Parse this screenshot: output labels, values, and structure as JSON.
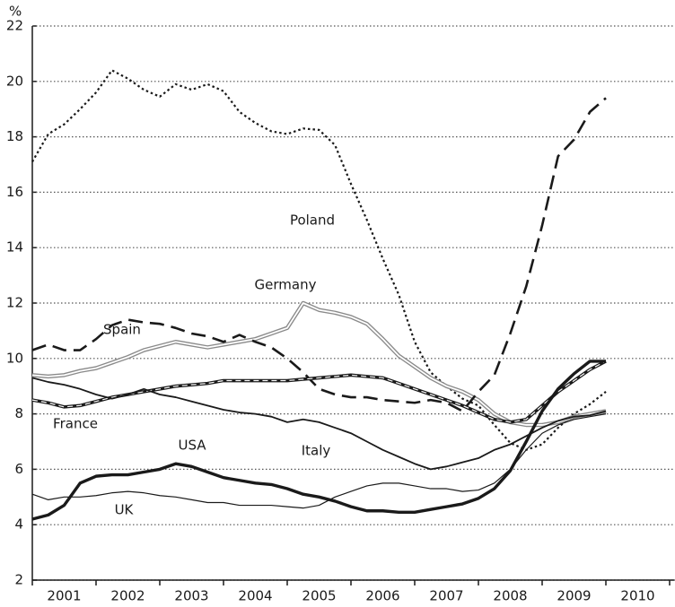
{
  "chart_data": {
    "type": "line",
    "y_unit_label": "%",
    "x": [
      2001,
      2001.25,
      2001.5,
      2001.75,
      2002,
      2002.25,
      2002.5,
      2002.75,
      2003,
      2003.25,
      2003.5,
      2003.75,
      2004,
      2004.25,
      2004.5,
      2004.75,
      2005,
      2005.25,
      2005.5,
      2005.75,
      2006,
      2006.25,
      2006.5,
      2006.75,
      2007,
      2007.25,
      2007.5,
      2007.75,
      2008,
      2008.25,
      2008.5,
      2008.75,
      2009,
      2009.25,
      2009.5,
      2009.75,
      2010
    ],
    "series": [
      {
        "name": "Poland",
        "color": "#1a1a1a",
        "style": "dotted",
        "values": [
          17.1,
          18.1,
          18.45,
          19.0,
          19.6,
          20.4,
          20.1,
          19.7,
          19.45,
          19.9,
          19.7,
          19.9,
          19.65,
          18.9,
          18.5,
          18.2,
          18.1,
          18.3,
          18.25,
          17.7,
          16.3,
          15.0,
          13.6,
          12.3,
          10.6,
          9.5,
          9.0,
          8.55,
          8.3,
          7.6,
          6.95,
          6.7,
          6.9,
          7.5,
          8.0,
          8.35,
          8.8
        ]
      },
      {
        "name": "Germany",
        "color": "#8a8a8a",
        "style": "double",
        "values": [
          9.4,
          9.35,
          9.4,
          9.55,
          9.65,
          9.85,
          10.05,
          10.3,
          10.45,
          10.6,
          10.5,
          10.4,
          10.5,
          10.6,
          10.7,
          10.9,
          11.1,
          12.0,
          11.75,
          11.65,
          11.5,
          11.25,
          10.7,
          10.1,
          9.7,
          9.3,
          9.0,
          8.8,
          8.5,
          8.0,
          7.7,
          7.6,
          7.6,
          7.7,
          7.9,
          8.0,
          8.1
        ]
      },
      {
        "name": "Spain",
        "color": "#1a1a1a",
        "style": "long-dash",
        "values": [
          10.3,
          10.5,
          10.3,
          10.3,
          10.7,
          11.2,
          11.4,
          11.3,
          11.25,
          11.1,
          10.9,
          10.8,
          10.6,
          10.85,
          10.6,
          10.4,
          10.0,
          9.5,
          8.9,
          8.7,
          8.6,
          8.6,
          8.5,
          8.45,
          8.4,
          8.5,
          8.4,
          8.1,
          8.8,
          9.4,
          10.9,
          12.6,
          14.8,
          17.3,
          17.9,
          18.9,
          19.4
        ]
      },
      {
        "name": "France",
        "color": "#1a1a1a",
        "style": "thick-dash",
        "values": [
          8.5,
          8.4,
          8.25,
          8.3,
          8.45,
          8.6,
          8.7,
          8.8,
          8.9,
          9.0,
          9.05,
          9.1,
          9.2,
          9.2,
          9.2,
          9.2,
          9.2,
          9.25,
          9.3,
          9.35,
          9.4,
          9.35,
          9.3,
          9.1,
          8.9,
          8.7,
          8.5,
          8.3,
          8.05,
          7.8,
          7.7,
          7.8,
          8.3,
          8.8,
          9.2,
          9.6,
          9.9
        ]
      },
      {
        "name": "USA",
        "color": "#1a1a1a",
        "style": "thick",
        "values": [
          4.2,
          4.35,
          4.7,
          5.5,
          5.75,
          5.8,
          5.8,
          5.9,
          6.0,
          6.2,
          6.1,
          5.9,
          5.7,
          5.6,
          5.5,
          5.45,
          5.3,
          5.1,
          5.0,
          4.85,
          4.65,
          4.5,
          4.5,
          4.45,
          4.45,
          4.55,
          4.65,
          4.75,
          4.95,
          5.3,
          5.95,
          7.0,
          8.1,
          8.9,
          9.45,
          9.9,
          9.9
        ]
      },
      {
        "name": "Italy",
        "color": "#1a1a1a",
        "style": "solid",
        "values": [
          9.3,
          9.15,
          9.05,
          8.9,
          8.7,
          8.55,
          8.7,
          8.9,
          8.7,
          8.6,
          8.45,
          8.3,
          8.15,
          8.05,
          8.0,
          7.9,
          7.7,
          7.8,
          7.7,
          7.5,
          7.3,
          7.0,
          6.7,
          6.45,
          6.2,
          6.0,
          6.1,
          6.25,
          6.4,
          6.7,
          6.9,
          7.2,
          7.5,
          7.75,
          7.9,
          7.95,
          8.1
        ]
      },
      {
        "name": "UK",
        "color": "#1a1a1a",
        "style": "thin",
        "values": [
          5.1,
          4.9,
          5.0,
          5.0,
          5.05,
          5.15,
          5.2,
          5.15,
          5.05,
          5.0,
          4.9,
          4.8,
          4.8,
          4.7,
          4.7,
          4.7,
          4.65,
          4.6,
          4.7,
          5.0,
          5.2,
          5.4,
          5.5,
          5.5,
          5.4,
          5.3,
          5.3,
          5.2,
          5.25,
          5.5,
          6.0,
          6.7,
          7.3,
          7.6,
          7.8,
          7.9,
          8.0
        ]
      }
    ],
    "xlim": [
      2001,
      2011.08
    ],
    "xticks": [
      {
        "value": 2001.5,
        "label": "2001"
      },
      {
        "value": 2002.5,
        "label": "2002"
      },
      {
        "value": 2003.5,
        "label": "2003"
      },
      {
        "value": 2004.5,
        "label": "2004"
      },
      {
        "value": 2005.5,
        "label": "2005"
      },
      {
        "value": 2006.5,
        "label": "2006"
      },
      {
        "value": 2007.5,
        "label": "2007"
      },
      {
        "value": 2008.5,
        "label": "2008"
      },
      {
        "value": 2009.5,
        "label": "2009"
      },
      {
        "value": 2010.5,
        "label": "2010"
      }
    ],
    "xtick_marks": [
      2001,
      2002,
      2003,
      2004,
      2005,
      2006,
      2007,
      2008,
      2009,
      2010,
      2011
    ],
    "ylim": [
      2,
      22
    ],
    "yticks": [
      2,
      4,
      6,
      8,
      10,
      12,
      14,
      16,
      18,
      20,
      22
    ],
    "grid": true
  }
}
